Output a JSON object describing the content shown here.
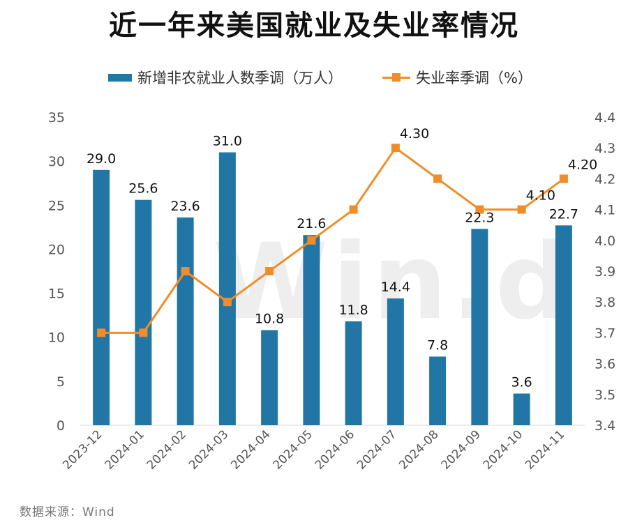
{
  "title": "近一年来美国就业及失业率情况",
  "source": "数据来源：Wind",
  "watermark": "Win.d",
  "colors": {
    "bar": "#2176A5",
    "line": "#F28C28"
  },
  "chart_data": {
    "type": "bar+line",
    "title": "近一年来美国就业及失业率情况",
    "categories": [
      "2023-12",
      "2024-01",
      "2024-02",
      "2024-03",
      "2024-04",
      "2024-05",
      "2024-06",
      "2024-07",
      "2024-08",
      "2024-09",
      "2024-10",
      "2024-11"
    ],
    "series": [
      {
        "name": "新增非农就业人数季调（万人）",
        "type": "bar",
        "axis": "left",
        "values": [
          29.0,
          25.6,
          23.6,
          31.0,
          10.8,
          21.6,
          11.8,
          14.4,
          7.8,
          22.3,
          3.6,
          22.7
        ],
        "labels": [
          "29.0",
          "25.6",
          "23.6",
          "31.0",
          "10.8",
          "21.6",
          "11.8",
          "14.4",
          "7.8",
          "22.3",
          "3.6",
          "22.7"
        ]
      },
      {
        "name": "失业率季调（%）",
        "type": "line",
        "axis": "right",
        "values": [
          3.7,
          3.7,
          3.9,
          3.8,
          3.9,
          4.0,
          4.1,
          4.3,
          4.2,
          4.1,
          4.1,
          4.2
        ],
        "labels": [
          "",
          "",
          "",
          "",
          "",
          "",
          "",
          "4.30",
          "",
          "",
          "4.10",
          "4.20"
        ]
      }
    ],
    "y_left": {
      "min": 0,
      "max": 35,
      "ticks": [
        "0",
        "5",
        "10",
        "15",
        "20",
        "25",
        "30",
        "35"
      ]
    },
    "y_right": {
      "min": 3.4,
      "max": 4.4,
      "ticks": [
        "3.4",
        "3.5",
        "3.6",
        "3.7",
        "3.8",
        "3.9",
        "4.0",
        "4.1",
        "4.2",
        "4.3",
        "4.4"
      ]
    },
    "legend_position": "top",
    "grid": false
  }
}
